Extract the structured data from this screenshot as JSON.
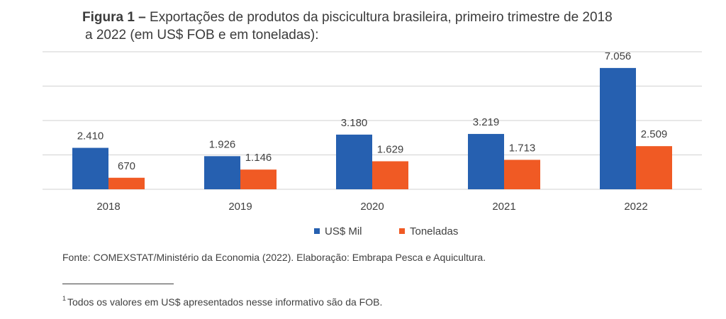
{
  "figure": {
    "title_bold": "Figura 1 –",
    "title_rest_line1": " Exportações de produtos da piscicultura brasileira, primeiro trimestre de 2018",
    "title_line2": "a 2022 (em US$ FOB e em toneladas):",
    "source": "Fonte: COMEXSTAT/Ministério da Economia (2022). Elaboração: Embrapa Pesca e Aquicultura.",
    "footnote_marker": "1",
    "footnote": "Todos os valores em US$ apresentados nesse informativo são da FOB."
  },
  "chart_data": {
    "type": "bar",
    "title": "Figura 1 – Exportações de produtos da piscicultura brasileira, primeiro trimestre de 2018 a 2022 (em US$ FOB e em toneladas):",
    "categories": [
      "2018",
      "2019",
      "2020",
      "2021",
      "2022"
    ],
    "series": [
      {
        "name": "US$ Mil",
        "color": "#2660b0",
        "values": [
          2410,
          1926,
          3180,
          3219,
          7056
        ],
        "labels": [
          "2.410",
          "1.926",
          "3.180",
          "3.219",
          "7.056"
        ]
      },
      {
        "name": "Toneladas",
        "color": "#f05a24",
        "values": [
          670,
          1146,
          1629,
          1713,
          2509
        ],
        "labels": [
          "670",
          "1.146",
          "1.629",
          "1.713",
          "2.509"
        ]
      }
    ],
    "xlabel": "",
    "ylabel": "",
    "ylim": [
      0,
      8000
    ],
    "gridlines": [
      0,
      2000,
      4000,
      6000,
      8000
    ],
    "grid": true,
    "legend": "bottom-center",
    "gridline_color": "#d9d9d9"
  }
}
